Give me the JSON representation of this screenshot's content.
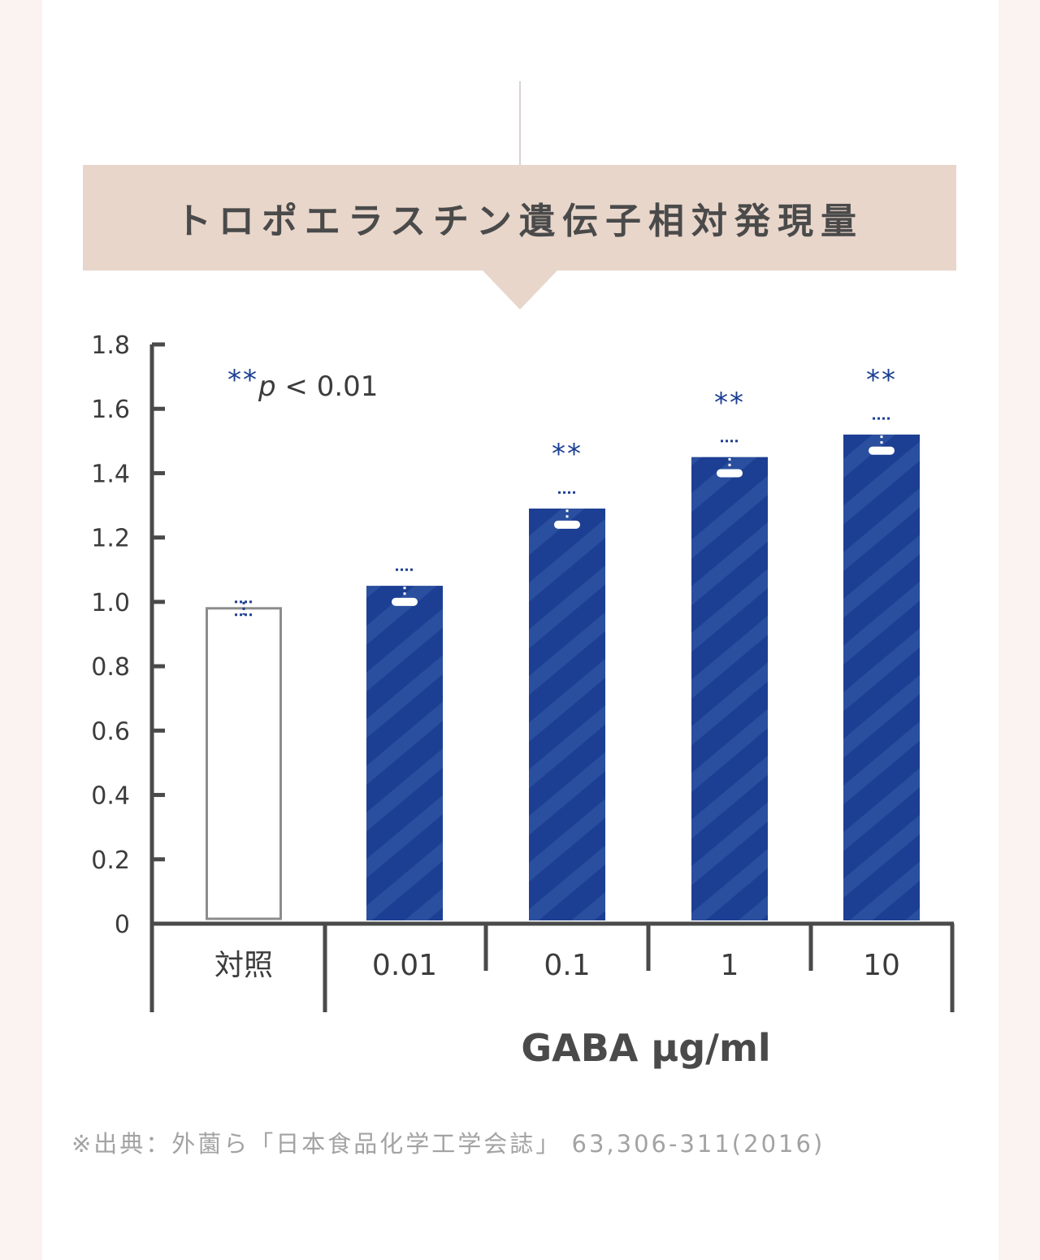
{
  "title": "トロポエラスチン遺伝子相対発現量",
  "chart_data": {
    "type": "bar",
    "categories": [
      "対照",
      "0.01",
      "0.1",
      "1",
      "10"
    ],
    "values": [
      0.98,
      1.05,
      1.29,
      1.45,
      1.52
    ],
    "errors": [
      0.02,
      0.05,
      0.05,
      0.05,
      0.05
    ],
    "significance": [
      "",
      "",
      "**",
      "**",
      "**"
    ],
    "xlabel": "GABA μg/ml",
    "ylabel": "",
    "ylim": [
      0,
      1.8
    ],
    "yticks": [
      "0",
      "0.2",
      "0.4",
      "0.6",
      "0.8",
      "1.0",
      "1.2",
      "1.4",
      "1.6",
      "1.8"
    ],
    "note": "**p < 0.01",
    "note_stars": "**",
    "note_p": "p",
    "note_rest": " < 0.01",
    "colors": {
      "control": "#ffffff",
      "treated": "#1c3f93",
      "significance": "#1c3f93"
    },
    "grid": false
  },
  "source": "※出典：外薗ら「日本食品化学工学会誌」 63,306-311(2016)"
}
